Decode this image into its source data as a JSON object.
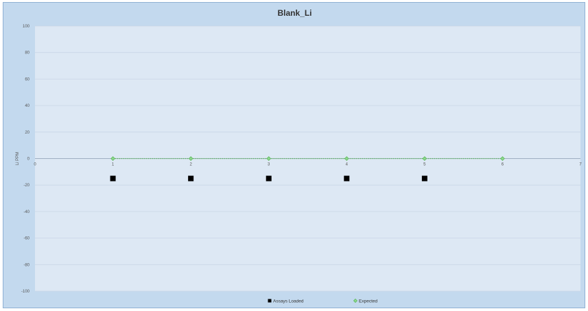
{
  "chart_data": {
    "type": "scatter",
    "title": "Blank_Li",
    "xlabel": "",
    "ylabel": "Li PPM",
    "xlim": [
      0,
      7
    ],
    "ylim": [
      -100,
      100
    ],
    "x_ticks": [
      0,
      1,
      2,
      3,
      4,
      5,
      6,
      7
    ],
    "y_ticks": [
      100,
      80,
      60,
      40,
      20,
      0,
      -20,
      -40,
      -60,
      -80,
      -100
    ],
    "grid": true,
    "legend_position": "bottom",
    "series": [
      {
        "name": "Assays Loaded",
        "marker": "square",
        "color": "#000000",
        "x": [
          1,
          2,
          3,
          4,
          5
        ],
        "y": [
          -15,
          -15,
          -15,
          -15,
          -15
        ]
      },
      {
        "name": "Expected",
        "marker": "diamond",
        "line": "dotted",
        "color": "#5cb85c",
        "x": [
          1,
          2,
          3,
          4,
          5,
          6
        ],
        "y": [
          0,
          0,
          0,
          0,
          0,
          0
        ]
      }
    ],
    "colors": {
      "chart_background": "#c3d9ee",
      "plot_background": "#dde8f4",
      "gridline": "#c9d6e6"
    }
  }
}
